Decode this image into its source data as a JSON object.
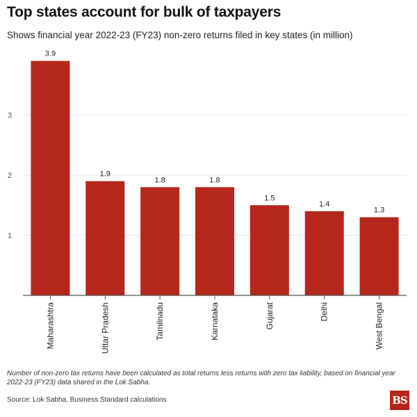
{
  "header": {
    "title": "Top states account for bulk of taxpayers",
    "subtitle": "Shows financial year 2022-23 (FY23) non-zero returns filed in key states (in million)"
  },
  "footer": {
    "note": "Number of non-zero tax returns have been calculated as total returns less returns with zero tax liability, based on financial year 2022-23 (FY23) data shared in the Lok Sabha.",
    "source": "Source: Lok Sabha, Business Standard calculations",
    "logo_text": "BS"
  },
  "colors": {
    "bar": "#b5271a",
    "grid": "#e6e6e6",
    "axis": "#555555",
    "logo": "#b5271a"
  },
  "chart_data": {
    "type": "bar",
    "title": "Top states account for bulk of taxpayers",
    "subtitle": "Shows financial year 2022-23 (FY23) non-zero returns filed in key states (in million)",
    "xlabel": "",
    "ylabel": "",
    "categories": [
      "Maharashtra",
      "Uttar Pradesh",
      "Tamilnadu",
      "Karnataka",
      "Gujarat",
      "Delhi",
      "West Bengal"
    ],
    "values": [
      3.9,
      1.9,
      1.8,
      1.8,
      1.5,
      1.4,
      1.3
    ],
    "data_labels": [
      "3.9",
      "1.9",
      "1.8",
      "1.8",
      "1.5",
      "1.4",
      "1.3"
    ],
    "y_ticks": [
      1,
      2,
      3
    ],
    "ylim": [
      0,
      4.2
    ],
    "grid": true,
    "legend": "none",
    "x_tick_rotation": "vertical"
  }
}
